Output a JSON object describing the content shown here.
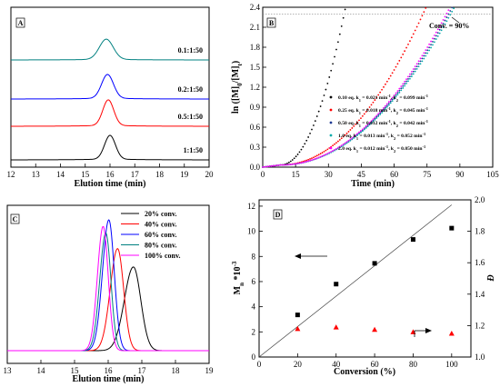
{
  "chart_data": [
    {
      "panel": "A",
      "type": "line",
      "xlabel": "Elution time (min)",
      "xlim": [
        12,
        20
      ],
      "xticks": [
        "12",
        "13",
        "14",
        "15",
        "16",
        "17",
        "18",
        "19",
        "20"
      ],
      "series": [
        {
          "name": "0.1:1:50",
          "color": "#008080",
          "peak": 15.85,
          "sigma": 0.28
        },
        {
          "name": "0.2:1:50",
          "color": "#0000ff",
          "peak": 15.9,
          "sigma": 0.24
        },
        {
          "name": "0.5:1:50",
          "color": "#ff0000",
          "peak": 15.93,
          "sigma": 0.22
        },
        {
          "name": "1:1:50",
          "color": "#000000",
          "peak": 16.0,
          "sigma": 0.22
        }
      ]
    },
    {
      "panel": "B",
      "type": "scatter",
      "xlabel": "Time (min)",
      "ylabel": "ln ([M]0/[M]t)",
      "xlim": [
        0,
        105
      ],
      "ylim": [
        0,
        2.4
      ],
      "xticks": [
        "0",
        "15",
        "30",
        "45",
        "60",
        "75",
        "90",
        "105"
      ],
      "yticks": [
        "0.0",
        "0.3",
        "0.6",
        "0.9",
        "1.2",
        "1.5",
        "1.8",
        "2.1",
        "2.4"
      ],
      "reference_line": {
        "y": 2.3,
        "label": "Conv. = 90%"
      },
      "series": [
        {
          "name": "0.10 eq. k1 = 0.021 min-1, k2 = 0.099 min-1",
          "eq": "0.10 eq.",
          "k1": "0.021",
          "k2": "0.099",
          "color": "#000000",
          "x_end": 38,
          "t0": 8
        },
        {
          "name": "0.25 eq. k1 = 0.018 min-1, k2 = 0.045 min-1",
          "eq": "0.25 eq.",
          "k1": "0.018",
          "k2": "0.045",
          "color": "#ff0000",
          "x_end": 75,
          "t0": 8
        },
        {
          "name": "0.50 eq. k1 = 0.012 min-1, k2 = 0.042 min-1",
          "eq": "0.50 eq.",
          "k1": "0.012",
          "k2": "0.042",
          "color": "#1f3a93",
          "x_end": 87,
          "t0": 8
        },
        {
          "name": "1.0 eq. k1 = 0.013 min-1, k2 = 0.052 min-1",
          "eq": "1.0 eq.",
          "k1": "0.013",
          "k2": "0.052",
          "color": "#00aaaa",
          "x_end": 88,
          "t0": 8
        },
        {
          "name": "2.0 eq. k1 = 0.012 min-1, k2 = 0.050 min-1",
          "eq": "2.0 eq.",
          "k1": "0.012",
          "k2": "0.050",
          "color": "#ff00ff",
          "x_end": 86,
          "t0": 8
        }
      ]
    },
    {
      "panel": "C",
      "type": "line",
      "xlabel": "Elution time (min)",
      "xlim": [
        13,
        19
      ],
      "xticks": [
        "13",
        "14",
        "15",
        "16",
        "17",
        "18",
        "19"
      ],
      "series": [
        {
          "name": "20% conv.",
          "color": "#000000",
          "peak": 16.75,
          "height": 0.64,
          "sl": 0.27,
          "sr": 0.22
        },
        {
          "name": "40% conv.",
          "color": "#ff0000",
          "peak": 16.28,
          "height": 0.78,
          "sl": 0.22,
          "sr": 0.18
        },
        {
          "name": "60% conv.",
          "color": "#0000ff",
          "peak": 16.02,
          "height": 1.0,
          "sl": 0.19,
          "sr": 0.16
        },
        {
          "name": "80% conv.",
          "color": "#008080",
          "peak": 15.93,
          "height": 0.9,
          "sl": 0.18,
          "sr": 0.15
        },
        {
          "name": "100% conv.",
          "color": "#ff00ff",
          "peak": 15.85,
          "height": 0.95,
          "sl": 0.17,
          "sr": 0.15
        }
      ]
    },
    {
      "panel": "D",
      "type": "scatter",
      "xlabel": "Conversion (%)",
      "ylabel": "Mn *10-3",
      "y2label": "Đ",
      "xlim": [
        0,
        110
      ],
      "ylim": [
        0,
        12.5
      ],
      "y2lim": [
        1.0,
        2.0
      ],
      "xticks": [
        "0",
        "20",
        "40",
        "60",
        "80",
        "100"
      ],
      "yticks": [
        "0",
        "2",
        "4",
        "6",
        "8",
        "10",
        "12"
      ],
      "y2ticks": [
        "1.0",
        "1.2",
        "1.4",
        "1.6",
        "1.8",
        "2.0"
      ],
      "theory_line": {
        "x": [
          0,
          100
        ],
        "y": [
          0,
          12.1
        ]
      },
      "series": [
        {
          "name": "Mn",
          "axis": "left",
          "marker": "square",
          "color": "#000000",
          "x": [
            20,
            40,
            60,
            80,
            100
          ],
          "y": [
            3.35,
            5.8,
            7.45,
            9.35,
            10.25
          ]
        },
        {
          "name": "Đ",
          "axis": "right",
          "marker": "triangle",
          "color": "#ff0000",
          "x": [
            20,
            40,
            60,
            80,
            100
          ],
          "y": [
            1.18,
            1.19,
            1.175,
            1.16,
            1.15
          ]
        }
      ]
    }
  ]
}
